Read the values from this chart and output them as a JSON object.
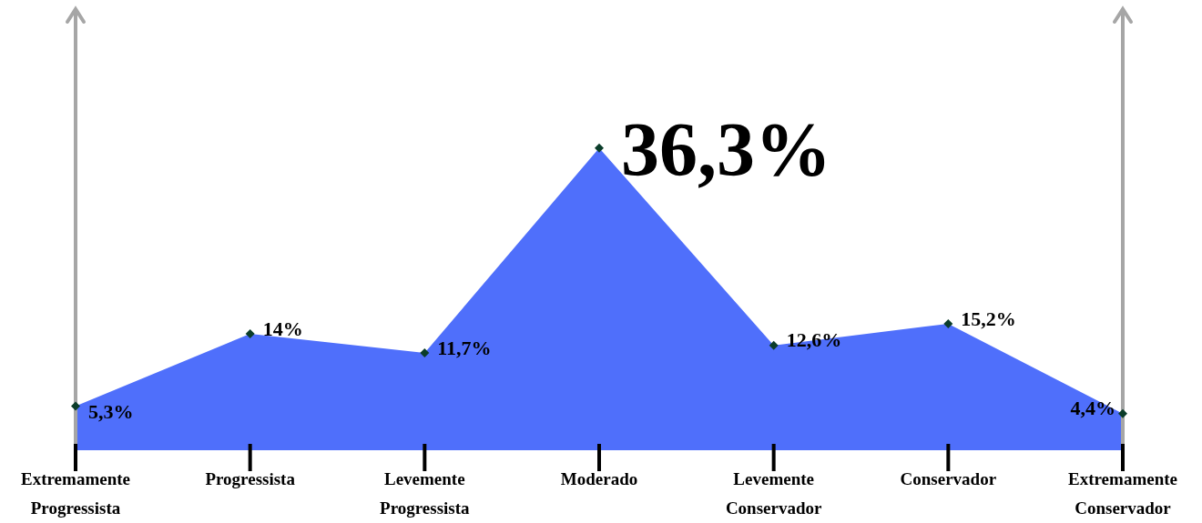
{
  "chart_data": {
    "type": "area",
    "categories": [
      "Extremamente Progressista",
      "Progressista",
      "Levemente Progressista",
      "Moderado",
      "Levemente Conservador",
      "Conservador",
      "Extremamente Conservador"
    ],
    "values": [
      5.3,
      14,
      11.7,
      36.3,
      12.6,
      15.2,
      4.4
    ],
    "value_labels": [
      "5,3%",
      "14%",
      "11,7%",
      "36,3%",
      "12,6%",
      "15,2%",
      "4,4%"
    ],
    "color": "#4f6ffb",
    "marker": "diamond",
    "legend": false
  }
}
